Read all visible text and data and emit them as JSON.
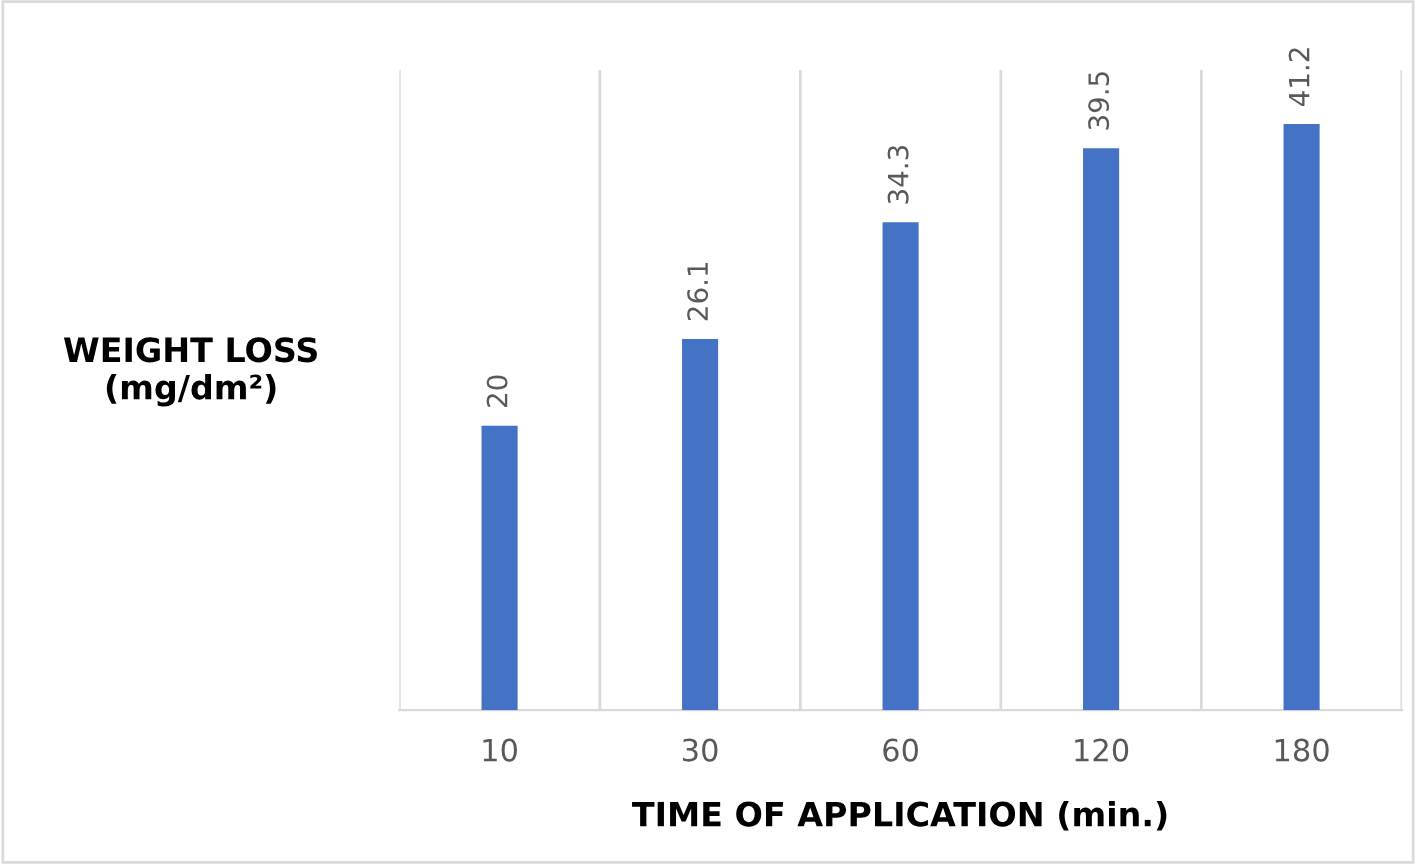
{
  "chart_data": {
    "type": "bar",
    "xlabel": "TIME OF APPLICATION (min.)",
    "ylabel": "WEIGHT LOSS\n(mg/dm²)",
    "categories": [
      "10",
      "30",
      "60",
      "120",
      "180"
    ],
    "values": [
      20,
      26.1,
      34.3,
      39.5,
      41.2
    ],
    "color": "#4472c4",
    "ylim": [
      0,
      45
    ],
    "data_labels": true,
    "grid": "x",
    "tick_labels": "x"
  }
}
